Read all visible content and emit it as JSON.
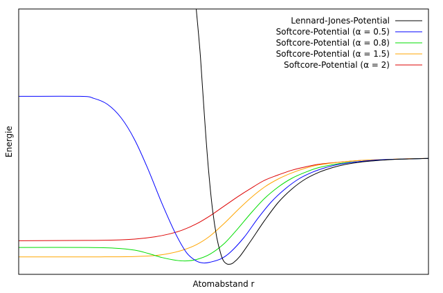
{
  "chart_data": {
    "type": "line",
    "title": "",
    "xlabel": "Atomabstand r",
    "ylabel": "Energie",
    "xlim": [
      0,
      3
    ],
    "ylim": [
      -1.35,
      2.6
    ],
    "x_ticks": [],
    "y_ticks": [],
    "grid": false,
    "legend_position": "top-right",
    "series": [
      {
        "name": "Lennard-Jones-Potential",
        "color": "#000000",
        "points": [
          [
            1.3,
            2.6
          ],
          [
            1.33,
            1.9
          ],
          [
            1.36,
            1.0
          ],
          [
            1.39,
            0.2
          ],
          [
            1.42,
            -0.4
          ],
          [
            1.45,
            -0.8
          ],
          [
            1.48,
            -1.05
          ],
          [
            1.5,
            -1.15
          ],
          [
            1.52,
            -1.19
          ],
          [
            1.54,
            -1.2
          ],
          [
            1.57,
            -1.18
          ],
          [
            1.62,
            -1.08
          ],
          [
            1.7,
            -0.85
          ],
          [
            1.8,
            -0.55
          ],
          [
            1.9,
            -0.28
          ],
          [
            2.0,
            -0.08
          ],
          [
            2.1,
            0.07
          ],
          [
            2.2,
            0.17
          ],
          [
            2.3,
            0.24
          ],
          [
            2.4,
            0.29
          ],
          [
            2.5,
            0.32
          ],
          [
            2.6,
            0.34
          ],
          [
            2.7,
            0.355
          ],
          [
            2.8,
            0.365
          ],
          [
            2.9,
            0.37
          ],
          [
            3.0,
            0.375
          ]
        ]
      },
      {
        "name": "Softcore-Potential (α = 0.5)",
        "color": "#0000ff",
        "points": [
          [
            0.0,
            1.3
          ],
          [
            0.45,
            1.3
          ],
          [
            0.55,
            1.27
          ],
          [
            0.65,
            1.18
          ],
          [
            0.75,
            0.98
          ],
          [
            0.85,
            0.65
          ],
          [
            0.95,
            0.2
          ],
          [
            1.05,
            -0.3
          ],
          [
            1.15,
            -0.75
          ],
          [
            1.23,
            -1.03
          ],
          [
            1.3,
            -1.15
          ],
          [
            1.35,
            -1.18
          ],
          [
            1.4,
            -1.17
          ],
          [
            1.48,
            -1.12
          ],
          [
            1.55,
            -1.02
          ],
          [
            1.65,
            -0.8
          ],
          [
            1.75,
            -0.52
          ],
          [
            1.85,
            -0.27
          ],
          [
            1.95,
            -0.08
          ],
          [
            2.05,
            0.07
          ],
          [
            2.15,
            0.17
          ],
          [
            2.25,
            0.24
          ],
          [
            2.35,
            0.29
          ],
          [
            2.5,
            0.33
          ],
          [
            2.65,
            0.355
          ],
          [
            2.8,
            0.365
          ],
          [
            3.0,
            0.375
          ]
        ]
      },
      {
        "name": "Softcore-Potential (α = 0.8)",
        "color": "#00dd00",
        "points": [
          [
            0.0,
            -0.95
          ],
          [
            0.5,
            -0.95
          ],
          [
            0.7,
            -0.96
          ],
          [
            0.85,
            -0.99
          ],
          [
            0.95,
            -1.04
          ],
          [
            1.05,
            -1.1
          ],
          [
            1.15,
            -1.14
          ],
          [
            1.22,
            -1.15
          ],
          [
            1.3,
            -1.13
          ],
          [
            1.4,
            -1.05
          ],
          [
            1.5,
            -0.9
          ],
          [
            1.6,
            -0.68
          ],
          [
            1.7,
            -0.44
          ],
          [
            1.8,
            -0.22
          ],
          [
            1.9,
            -0.05
          ],
          [
            2.0,
            0.08
          ],
          [
            2.1,
            0.17
          ],
          [
            2.2,
            0.24
          ],
          [
            2.35,
            0.3
          ],
          [
            2.5,
            0.33
          ],
          [
            2.65,
            0.355
          ],
          [
            2.8,
            0.365
          ],
          [
            3.0,
            0.375
          ]
        ]
      },
      {
        "name": "Softcore-Potential (α = 1.5)",
        "color": "#ffa500",
        "points": [
          [
            0.0,
            -1.09
          ],
          [
            0.6,
            -1.09
          ],
          [
            0.85,
            -1.085
          ],
          [
            1.0,
            -1.07
          ],
          [
            1.1,
            -1.04
          ],
          [
            1.2,
            -0.99
          ],
          [
            1.3,
            -0.91
          ],
          [
            1.4,
            -0.78
          ],
          [
            1.5,
            -0.6
          ],
          [
            1.6,
            -0.4
          ],
          [
            1.7,
            -0.21
          ],
          [
            1.8,
            -0.05
          ],
          [
            1.9,
            0.07
          ],
          [
            2.0,
            0.16
          ],
          [
            2.1,
            0.23
          ],
          [
            2.2,
            0.28
          ],
          [
            2.35,
            0.32
          ],
          [
            2.5,
            0.345
          ],
          [
            2.7,
            0.36
          ],
          [
            2.85,
            0.37
          ],
          [
            3.0,
            0.375
          ]
        ]
      },
      {
        "name": "Softcore-Potential (α = 2)",
        "color": "#dd0000",
        "points": [
          [
            0.0,
            -0.85
          ],
          [
            0.5,
            -0.845
          ],
          [
            0.7,
            -0.84
          ],
          [
            0.85,
            -0.825
          ],
          [
            1.0,
            -0.79
          ],
          [
            1.1,
            -0.75
          ],
          [
            1.2,
            -0.69
          ],
          [
            1.3,
            -0.6
          ],
          [
            1.4,
            -0.48
          ],
          [
            1.5,
            -0.34
          ],
          [
            1.6,
            -0.2
          ],
          [
            1.7,
            -0.07
          ],
          [
            1.8,
            0.05
          ],
          [
            1.9,
            0.13
          ],
          [
            2.0,
            0.2
          ],
          [
            2.1,
            0.25
          ],
          [
            2.2,
            0.29
          ],
          [
            2.35,
            0.32
          ],
          [
            2.5,
            0.345
          ],
          [
            2.7,
            0.36
          ],
          [
            2.85,
            0.37
          ],
          [
            3.0,
            0.375
          ]
        ]
      }
    ]
  }
}
